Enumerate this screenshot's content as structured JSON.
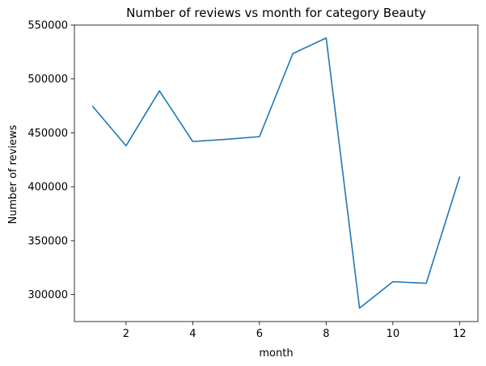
{
  "chart_data": {
    "type": "line",
    "title": "Number of reviews vs month for category Beauty",
    "xlabel": "month",
    "ylabel": "Number of reviews",
    "xlim": [
      0.45,
      12.55
    ],
    "ylim": [
      275000,
      550000
    ],
    "xticks": [
      2,
      4,
      6,
      8,
      10,
      12
    ],
    "yticks": [
      300000,
      350000,
      400000,
      450000,
      500000,
      550000
    ],
    "grid": false,
    "series": [
      {
        "color": "#1f77b4",
        "x": [
          1,
          2,
          3,
          4,
          5,
          6,
          7,
          8,
          9,
          10,
          11,
          12
        ],
        "y": [
          474500,
          438000,
          489000,
          442000,
          444000,
          446500,
          523500,
          538000,
          287500,
          312000,
          310500,
          409000
        ]
      }
    ]
  }
}
